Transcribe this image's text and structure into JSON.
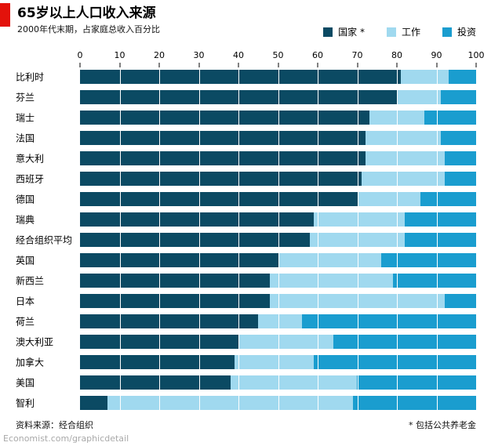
{
  "header": {
    "title": "65岁以上人口收入来源",
    "subtitle": "2000年代末期，占家庭总收入百分比"
  },
  "footnotes": {
    "source": "资料来源：经合组织",
    "note": "* 包括公共养老金"
  },
  "footer": {
    "link": "Economist.com/graphicdetail"
  },
  "colors": {
    "brand_red": "#e3120b",
    "state": "#0b4a63",
    "work": "#a0d9ef",
    "investment": "#1a9dcf"
  },
  "chart_data": {
    "type": "bar",
    "stacked": true,
    "orientation": "horizontal",
    "title": "65岁以上人口收入来源",
    "subtitle": "2000年代末期，占家庭总收入百分比",
    "xlabel": "",
    "ylabel": "",
    "xlim": [
      0,
      100
    ],
    "ticks": [
      0,
      10,
      20,
      30,
      40,
      50,
      60,
      70,
      80,
      90,
      100
    ],
    "grid": true,
    "legend_position": "top-right",
    "categories": [
      "比利时",
      "芬兰",
      "瑞士",
      "法国",
      "意大利",
      "西班牙",
      "德国",
      "瑞典",
      "经合组织平均",
      "英国",
      "新西兰",
      "日本",
      "荷兰",
      "澳大利亚",
      "加拿大",
      "美国",
      "智利"
    ],
    "series": [
      {
        "key": "state",
        "name": "国家 *",
        "color": "#0b4a63",
        "values": [
          81,
          80,
          73,
          72,
          72,
          71,
          70,
          59,
          58,
          50,
          48,
          48,
          45,
          40,
          39,
          38,
          7
        ]
      },
      {
        "key": "work",
        "name": "工作",
        "color": "#a0d9ef",
        "values": [
          12,
          11,
          14,
          19,
          20,
          21,
          16,
          23,
          24,
          26,
          31,
          44,
          11,
          24,
          20,
          32,
          62
        ]
      },
      {
        "key": "investment",
        "name": "投资",
        "color": "#1a9dcf",
        "values": [
          7,
          9,
          13,
          9,
          8,
          8,
          14,
          18,
          18,
          24,
          21,
          8,
          44,
          36,
          41,
          30,
          31
        ]
      }
    ]
  }
}
